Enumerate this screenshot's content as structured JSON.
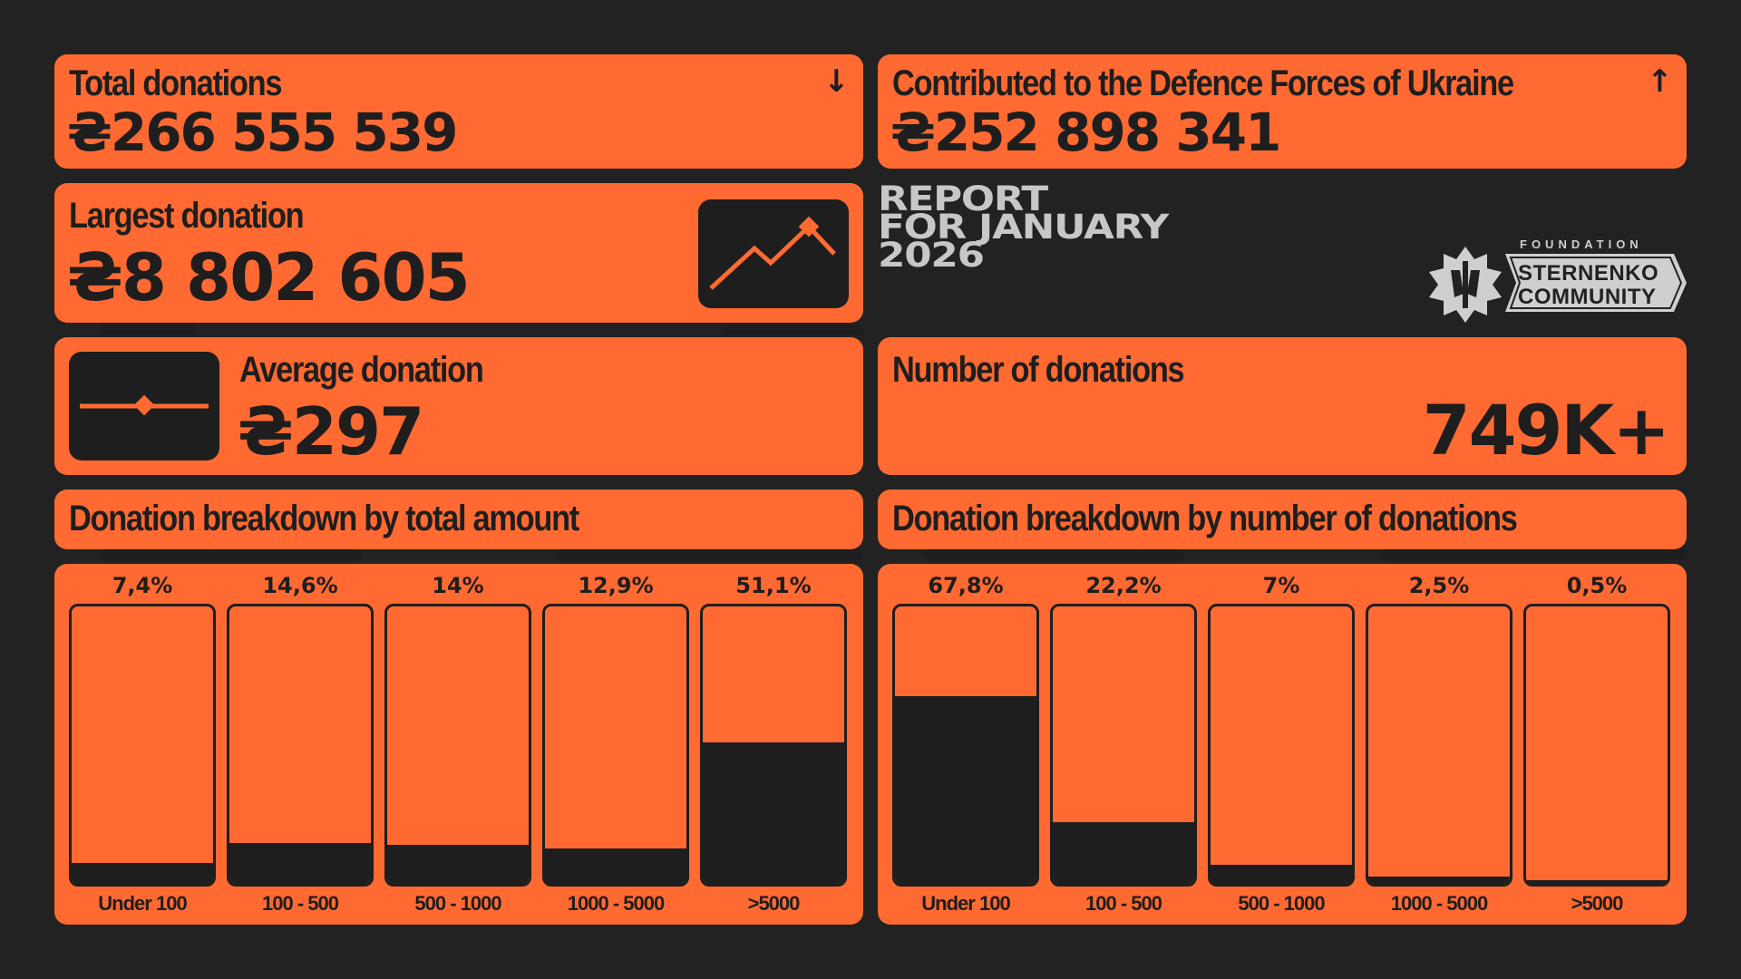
{
  "colors": {
    "background": "#222222",
    "card": "#ff6a33",
    "ink": "#1e1e1e",
    "muted": "#c7c7c7"
  },
  "total_donations": {
    "label": "Total donations",
    "value": "₴266 555 539",
    "trend_icon": "arrow-down-icon"
  },
  "contributed": {
    "label": "Contributed to the Defence Forces of Ukraine",
    "value": "₴252 898 341",
    "trend_icon": "arrow-up-icon"
  },
  "largest_donation": {
    "label": "Largest donation",
    "value": "₴8 802 605",
    "icon": "trend-line-icon"
  },
  "average_donation": {
    "label": "Average donation",
    "value": "₴297",
    "icon": "slider-diamond-icon"
  },
  "number_of_donations": {
    "label": "Number of donations",
    "value": "749K+"
  },
  "report": {
    "line1": "REPORT",
    "line2": "FOR JANUARY",
    "line3": "2026"
  },
  "logo": {
    "top": "FOUNDATION",
    "line1": "STERNENKO",
    "line2": "COMMUNITY",
    "icon": "sternenko-emblem-icon"
  },
  "chart_data": [
    {
      "type": "bar",
      "title": "Donation breakdown by total amount",
      "categories": [
        "Under 100",
        "100 - 500",
        "500 - 1000",
        "1000 - 5000",
        ">5000"
      ],
      "values": [
        7.4,
        14.6,
        14,
        12.9,
        51.1
      ],
      "value_labels": [
        "7,4%",
        "14,6%",
        "14%",
        "12,9%",
        "51,1%"
      ],
      "ylim": [
        0,
        100
      ]
    },
    {
      "type": "bar",
      "title": "Donation breakdown by number of donations",
      "categories": [
        "Under 100",
        "100 - 500",
        "500 - 1000",
        "1000 - 5000",
        ">5000"
      ],
      "values": [
        67.8,
        22.2,
        7,
        2.5,
        0.5
      ],
      "value_labels": [
        "67,8%",
        "22,2%",
        "7%",
        "2,5%",
        "0,5%"
      ],
      "ylim": [
        0,
        100
      ]
    }
  ]
}
